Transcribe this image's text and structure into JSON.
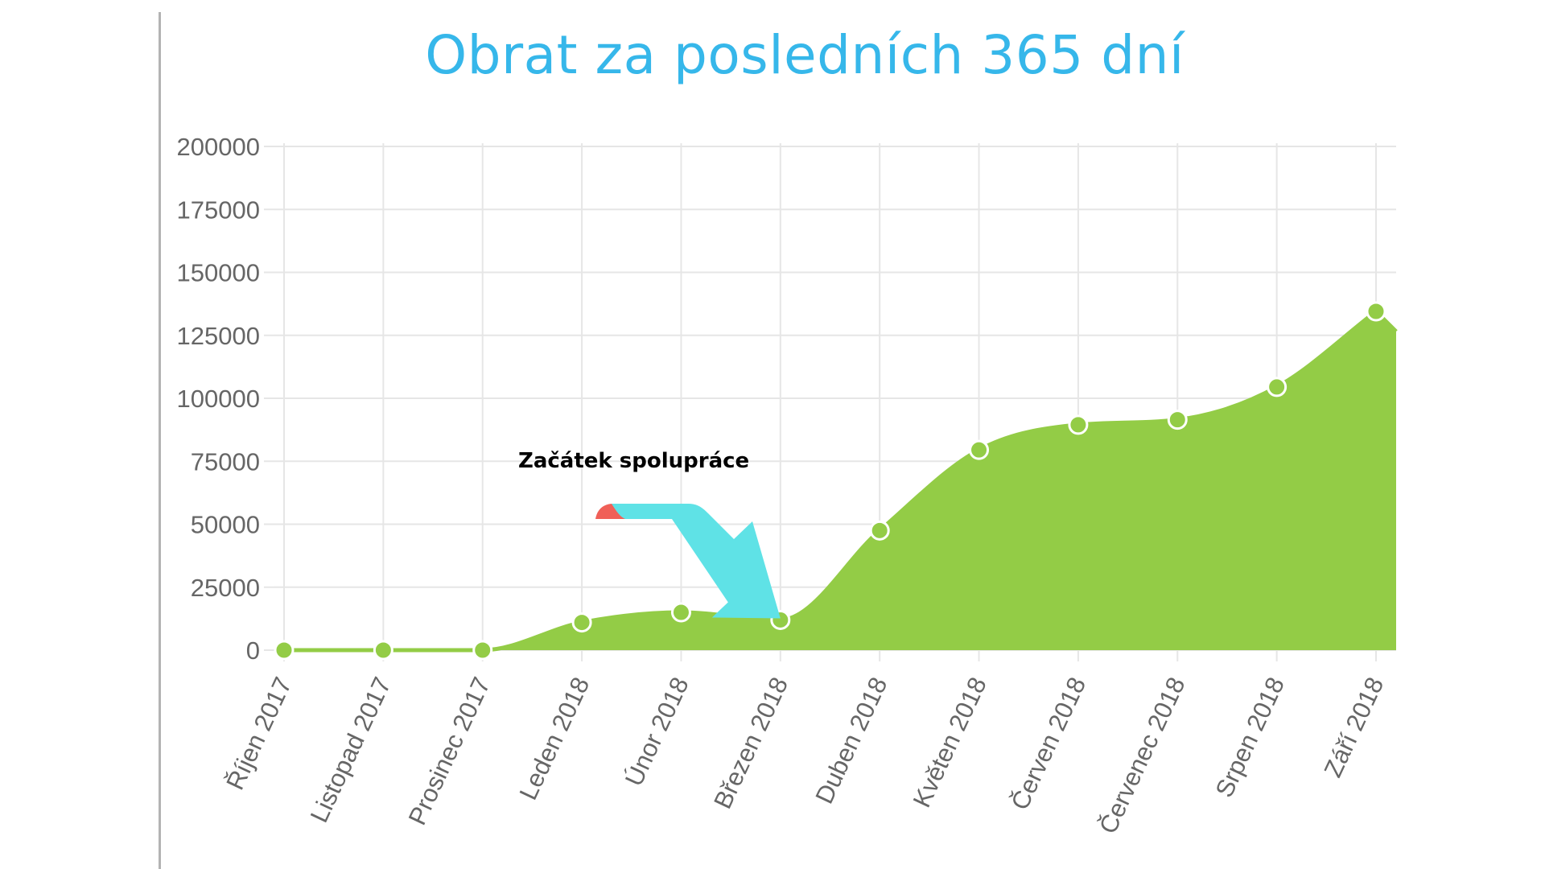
{
  "colors": {
    "title": "#36b7ea",
    "area_fill": "#93cc46",
    "line": "#93cc46",
    "point_fill": "#93cc46",
    "point_stroke": "#ffffff",
    "grid": "#e6e6e6",
    "arrow": "#5fe2e6",
    "arrow_accent": "#f06058"
  },
  "chart_data": {
    "type": "area",
    "title": "Obrat za posledních 365 dní",
    "xlabel": "",
    "ylabel": "",
    "categories": [
      "Říjen 2017",
      "Listopad 2017",
      "Prosinec 2017",
      "Leden 2018",
      "Únor 2018",
      "Březen 2018",
      "Duben 2018",
      "Květen 2018",
      "Červen 2018",
      "Červenec 2018",
      "Srpen 2018",
      "Září 2018"
    ],
    "series": [
      {
        "values": [
          0,
          0,
          0,
          11000,
          15000,
          12000,
          47500,
          79500,
          89500,
          91500,
          104500,
          134500
        ]
      }
    ],
    "ylim": [
      0,
      200000
    ],
    "yticks": [
      0,
      25000,
      50000,
      75000,
      100000,
      125000,
      150000,
      175000,
      200000
    ],
    "grid": true,
    "legend": "none",
    "annotations": [
      {
        "text": "Začátek spolupráce",
        "points_to": "Březen 2018",
        "icon": "arrow-icon"
      }
    ]
  }
}
